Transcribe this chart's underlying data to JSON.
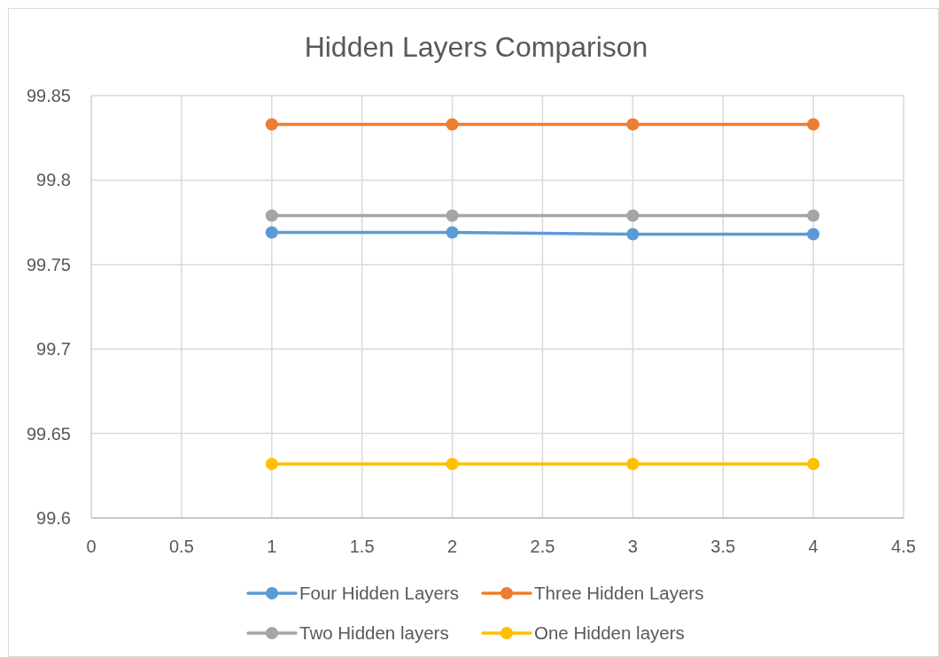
{
  "chart_data": {
    "type": "line",
    "title": "Hidden Layers Comparison",
    "x": [
      1,
      2,
      3,
      4
    ],
    "series": [
      {
        "name": "Four Hidden Layers",
        "color": "#5b9bd5",
        "values": [
          99.769,
          99.769,
          99.768,
          99.768
        ]
      },
      {
        "name": "Three Hidden Layers",
        "color": "#ed7d31",
        "values": [
          99.833,
          99.833,
          99.833,
          99.833
        ]
      },
      {
        "name": "Two Hidden layers",
        "color": "#a5a5a5",
        "values": [
          99.779,
          99.779,
          99.779,
          99.779
        ]
      },
      {
        "name": "One Hidden layers",
        "color": "#ffc000",
        "values": [
          99.632,
          99.632,
          99.632,
          99.632
        ]
      }
    ],
    "xlim": [
      0,
      4.5
    ],
    "xticks": [
      0,
      0.5,
      1,
      1.5,
      2,
      2.5,
      3,
      3.5,
      4,
      4.5
    ],
    "ylim": [
      99.6,
      99.85
    ],
    "yticks": [
      99.6,
      99.65,
      99.7,
      99.75,
      99.8,
      99.85
    ],
    "grid": true,
    "legend": "bottom",
    "marker": "circle",
    "line_style": "solid"
  }
}
